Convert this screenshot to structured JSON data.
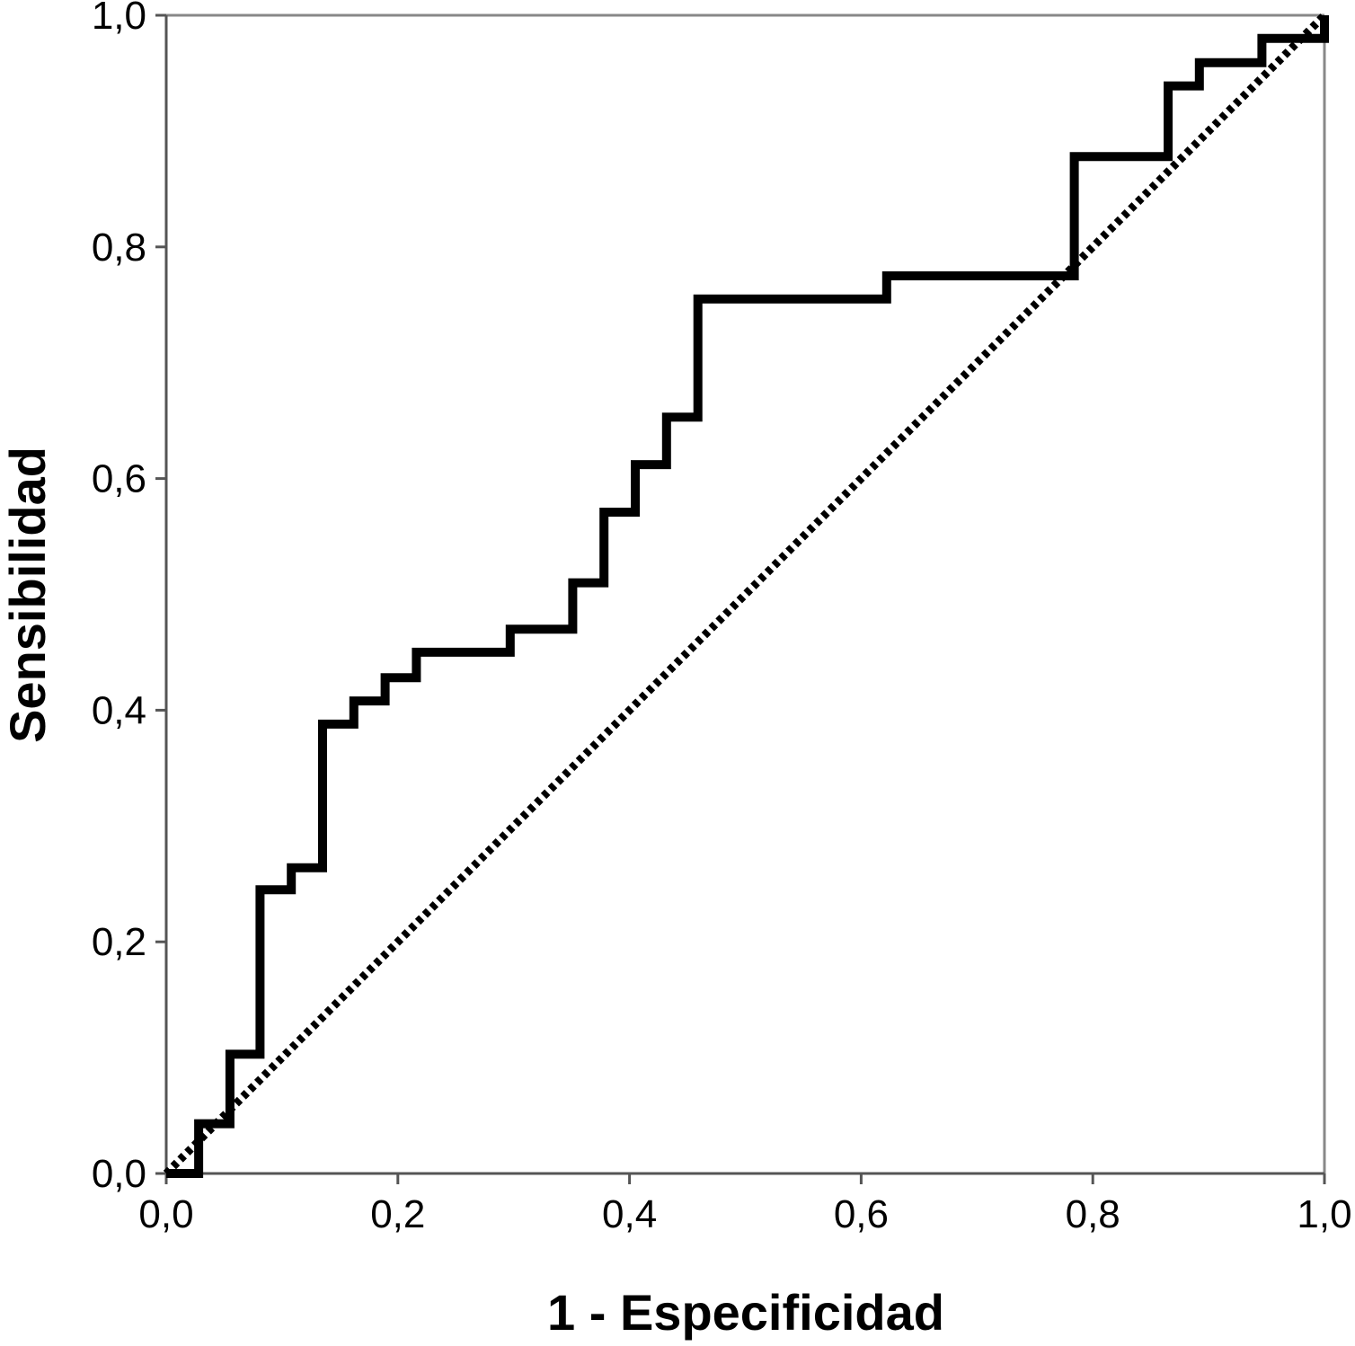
{
  "chart_data": {
    "type": "line",
    "title": "",
    "xlabel": "1 - Especificidad",
    "ylabel": "Sensibilidad",
    "xlim": [
      0,
      1
    ],
    "ylim": [
      0,
      1
    ],
    "x_ticks": [
      "0,0",
      "0,2",
      "0,4",
      "0,6",
      "0,8",
      "1,0"
    ],
    "y_ticks": [
      "0,0",
      "0,2",
      "0,4",
      "0,6",
      "0,8",
      "1,0"
    ],
    "grid": false,
    "legend": "none",
    "series": [
      {
        "style": "solid-step",
        "color": "#000000",
        "points": [
          [
            0.0,
            0.0
          ],
          [
            0.028,
            0.0
          ],
          [
            0.028,
            0.043
          ],
          [
            0.055,
            0.043
          ],
          [
            0.055,
            0.103
          ],
          [
            0.081,
            0.103
          ],
          [
            0.081,
            0.245
          ],
          [
            0.108,
            0.245
          ],
          [
            0.108,
            0.264
          ],
          [
            0.135,
            0.264
          ],
          [
            0.135,
            0.388
          ],
          [
            0.162,
            0.388
          ],
          [
            0.162,
            0.408
          ],
          [
            0.189,
            0.408
          ],
          [
            0.189,
            0.428
          ],
          [
            0.216,
            0.428
          ],
          [
            0.216,
            0.45
          ],
          [
            0.297,
            0.45
          ],
          [
            0.297,
            0.47
          ],
          [
            0.351,
            0.47
          ],
          [
            0.351,
            0.51
          ],
          [
            0.378,
            0.51
          ],
          [
            0.378,
            0.571
          ],
          [
            0.405,
            0.571
          ],
          [
            0.405,
            0.612
          ],
          [
            0.432,
            0.612
          ],
          [
            0.432,
            0.653
          ],
          [
            0.459,
            0.653
          ],
          [
            0.459,
            0.755
          ],
          [
            0.622,
            0.755
          ],
          [
            0.622,
            0.775
          ],
          [
            0.784,
            0.775
          ],
          [
            0.784,
            0.878
          ],
          [
            0.865,
            0.878
          ],
          [
            0.865,
            0.939
          ],
          [
            0.892,
            0.939
          ],
          [
            0.892,
            0.959
          ],
          [
            0.946,
            0.959
          ],
          [
            0.946,
            0.98
          ],
          [
            1.0,
            0.98
          ],
          [
            1.0,
            1.0
          ]
        ]
      },
      {
        "style": "dotted-reference",
        "color": "#000000",
        "points": [
          [
            0.0,
            0.0
          ],
          [
            1.0,
            1.0
          ]
        ]
      }
    ]
  }
}
